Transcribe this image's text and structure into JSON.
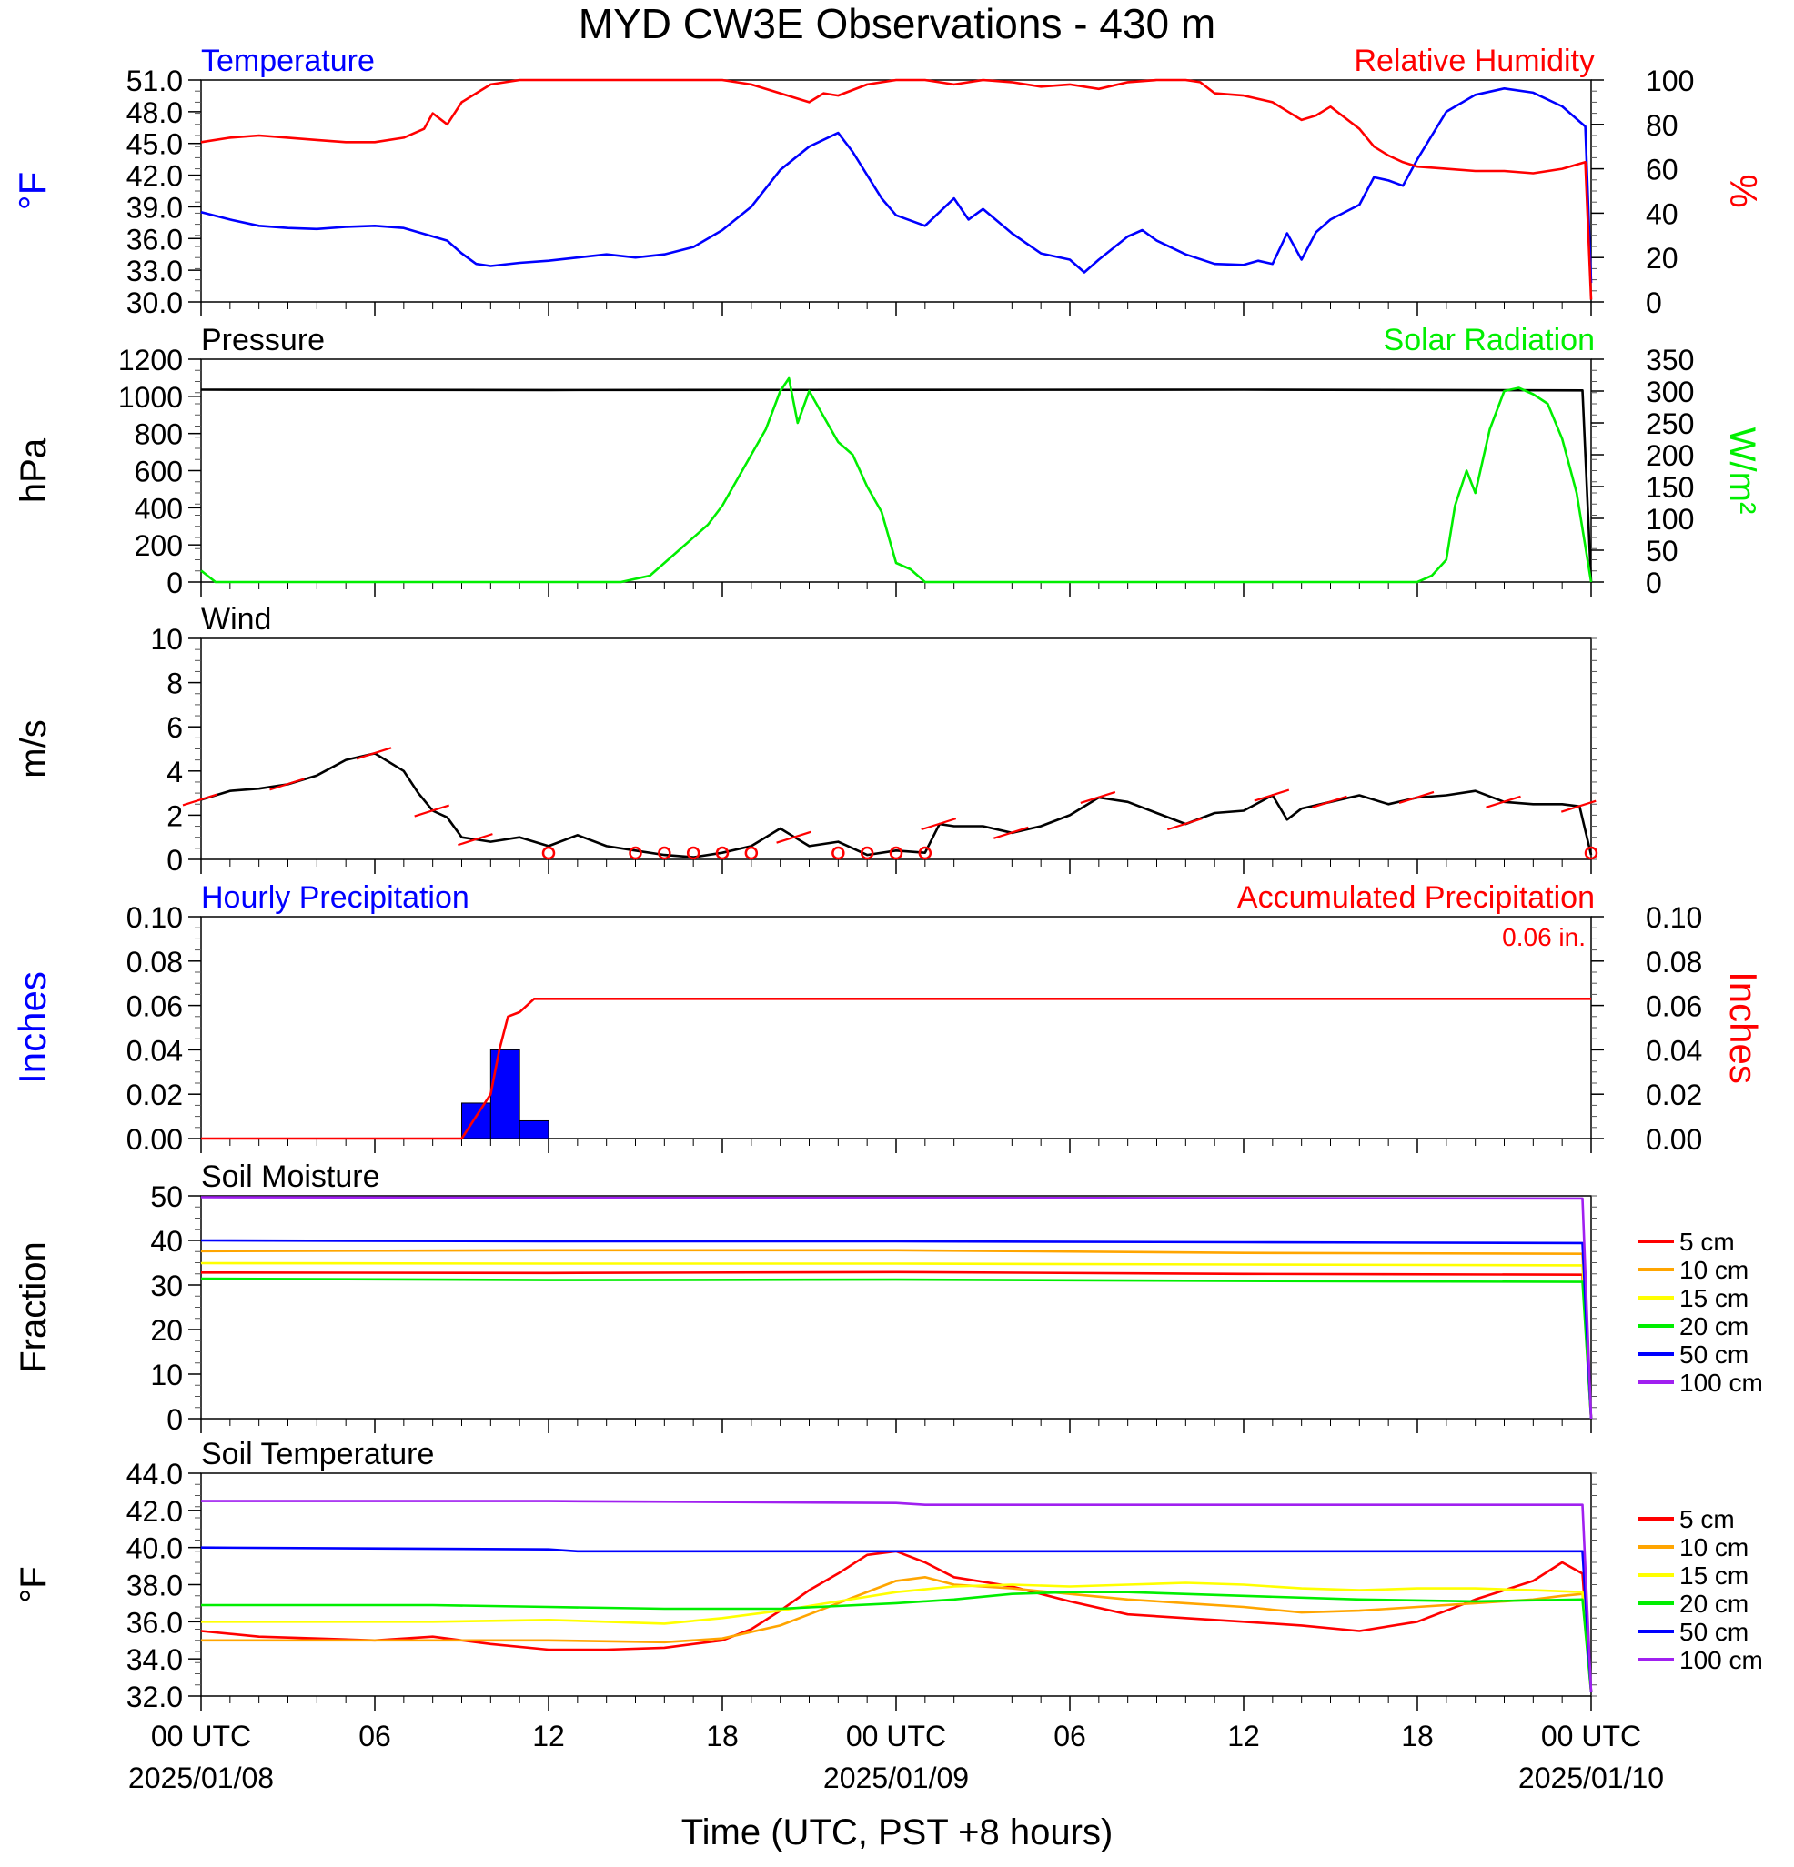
{
  "title": "MYD CW3E Observations - 430 m",
  "xaxis": {
    "title": "Time (UTC, PST +8 hours)",
    "ticks": [
      {
        "h": 0,
        "label": "00 UTC",
        "date": "2025/01/08"
      },
      {
        "h": 6,
        "label": "06",
        "date": ""
      },
      {
        "h": 12,
        "label": "12",
        "date": ""
      },
      {
        "h": 18,
        "label": "18",
        "date": ""
      },
      {
        "h": 24,
        "label": "00 UTC",
        "date": "2025/01/09"
      },
      {
        "h": 30,
        "label": "06",
        "date": ""
      },
      {
        "h": 36,
        "label": "12",
        "date": ""
      },
      {
        "h": 42,
        "label": "18",
        "date": ""
      },
      {
        "h": 48,
        "label": "00 UTC",
        "date": "2025/01/10"
      }
    ]
  },
  "chart_data": [
    {
      "type": "line",
      "id": "temp_rh",
      "left_title": "Temperature",
      "right_title": "Relative Humidity",
      "ylabel_left": "°F",
      "ylabel_right": "%",
      "left_ticks": [
        "51.0",
        "48.0",
        "45.0",
        "42.0",
        "39.0",
        "36.0",
        "33.0",
        "30.0"
      ],
      "right_ticks": [
        "100",
        "80",
        "60",
        "40",
        "20",
        "0"
      ],
      "ylim_left": [
        30,
        51
      ],
      "ylim_right": [
        0,
        100
      ],
      "series": [
        {
          "name": "Temperature",
          "color": "#0000ff",
          "axis": "left",
          "x": [
            0,
            1,
            2,
            3,
            4,
            5,
            6,
            7,
            8,
            8.5,
            9,
            9.5,
            10,
            11,
            12,
            13,
            14,
            15,
            16,
            17,
            18,
            19,
            20,
            21,
            22,
            22.5,
            23,
            23.5,
            24,
            25,
            26,
            26.5,
            27,
            28,
            29,
            30,
            30.5,
            31,
            32,
            32.5,
            33,
            34,
            35,
            36,
            36.5,
            37,
            37.5,
            38,
            38.5,
            39,
            40,
            40.5,
            41,
            41.5,
            42,
            43,
            44,
            45,
            46,
            47,
            47.8,
            48
          ],
          "y": [
            38.5,
            37.8,
            37.2,
            37.0,
            36.9,
            37.1,
            37.2,
            37.0,
            36.2,
            35.8,
            34.6,
            33.6,
            33.4,
            33.7,
            33.9,
            34.2,
            34.5,
            34.2,
            34.5,
            35.2,
            36.8,
            39.0,
            42.5,
            44.7,
            46.0,
            44.2,
            42.0,
            39.8,
            38.2,
            37.2,
            39.8,
            37.8,
            38.8,
            36.5,
            34.6,
            34.0,
            32.8,
            34.0,
            36.2,
            36.8,
            35.8,
            34.5,
            33.6,
            33.5,
            33.9,
            33.6,
            36.5,
            34.0,
            36.6,
            37.8,
            39.2,
            41.8,
            41.5,
            41.0,
            43.5,
            48.0,
            49.6,
            50.2,
            49.8,
            48.5,
            46.6,
            31.8
          ]
        },
        {
          "name": "Relative Humidity",
          "color": "#ff0000",
          "axis": "right",
          "x": [
            0,
            1,
            2,
            3,
            4,
            5,
            6,
            7,
            7.7,
            8,
            8.5,
            9,
            9.5,
            10,
            11,
            12,
            13,
            14,
            15,
            16,
            17,
            18,
            19,
            20,
            20.5,
            21,
            21.5,
            22,
            23,
            24,
            25,
            26,
            27,
            28,
            29,
            30,
            31,
            32,
            33,
            34,
            34.5,
            35,
            36,
            37,
            37.5,
            38,
            38.5,
            39,
            40,
            40.5,
            41,
            41.5,
            42,
            43,
            44,
            45,
            46,
            47,
            47.8,
            48
          ],
          "y": [
            72,
            74,
            75,
            74,
            73,
            72,
            72,
            74,
            78,
            85,
            80,
            90,
            94,
            98,
            100,
            100,
            100,
            100,
            100,
            100,
            100,
            100,
            98,
            94,
            92,
            90,
            94,
            93,
            98,
            100,
            100,
            98,
            100,
            99,
            97,
            98,
            96,
            99,
            100,
            100,
            99,
            94,
            93,
            90,
            86,
            82,
            84,
            88,
            78,
            70,
            66,
            63,
            61,
            60,
            59,
            59,
            58,
            60,
            63,
            1
          ]
        }
      ]
    },
    {
      "type": "line",
      "id": "pres_solar",
      "left_title": "Pressure",
      "right_title": "Solar Radiation",
      "ylabel_left": "hPa",
      "ylabel_right": "W/m²",
      "left_ticks": [
        "1200",
        "1000",
        "800",
        "600",
        "400",
        "200",
        "0"
      ],
      "right_ticks": [
        "350",
        "300",
        "250",
        "200",
        "150",
        "100",
        "50",
        "0"
      ],
      "ylim_left": [
        0,
        1200
      ],
      "ylim_right": [
        0,
        350
      ],
      "series": [
        {
          "name": "Pressure",
          "color": "#000000",
          "axis": "left",
          "x": [
            0,
            12,
            24,
            36,
            47.7,
            48
          ],
          "y": [
            1036,
            1034,
            1035,
            1036,
            1032,
            0
          ]
        },
        {
          "name": "Solar Radiation",
          "color": "#00ee00",
          "axis": "right",
          "x": [
            0,
            0.5,
            14.5,
            15.5,
            16.5,
            17.5,
            18,
            18.5,
            19,
            19.5,
            20,
            20.3,
            20.6,
            21,
            21.5,
            22,
            22.5,
            23,
            23.5,
            24,
            24.5,
            25,
            42,
            42.5,
            43,
            43.3,
            43.7,
            44,
            44.5,
            45,
            45.5,
            46,
            46.5,
            47,
            47.5,
            48
          ],
          "y": [
            18,
            0,
            0,
            10,
            50,
            90,
            120,
            160,
            200,
            240,
            300,
            320,
            250,
            300,
            260,
            220,
            200,
            150,
            110,
            30,
            20,
            0,
            0,
            10,
            35,
            120,
            175,
            140,
            240,
            300,
            305,
            295,
            280,
            225,
            140,
            0
          ]
        }
      ]
    },
    {
      "type": "line",
      "id": "wind",
      "left_title": "Wind",
      "ylabel_left": "m/s",
      "left_ticks": [
        "10",
        "8",
        "6",
        "4",
        "2",
        "0"
      ],
      "ylim_left": [
        0,
        10
      ],
      "series": [
        {
          "name": "Wind",
          "color": "#000000",
          "axis": "left",
          "x": [
            0,
            1,
            2,
            3,
            4,
            5,
            6,
            7,
            7.5,
            8,
            8.5,
            9,
            9.5,
            10,
            11,
            12,
            13,
            14,
            15,
            16,
            17,
            18,
            19,
            20,
            20.5,
            21,
            22,
            23,
            24,
            25,
            25.5,
            26,
            27,
            28,
            29,
            30,
            31,
            32,
            33,
            34,
            35,
            36,
            37,
            37.5,
            38,
            39,
            40,
            41,
            42,
            43,
            44,
            45,
            46,
            47,
            47.6,
            48
          ],
          "y": [
            2.7,
            3.1,
            3.2,
            3.4,
            3.8,
            4.5,
            4.8,
            4.0,
            3.0,
            2.2,
            1.9,
            1.0,
            0.9,
            0.8,
            1.0,
            0.6,
            1.1,
            0.6,
            0.4,
            0.2,
            0.1,
            0.3,
            0.6,
            1.4,
            1.0,
            0.6,
            0.8,
            0.2,
            0.4,
            0.3,
            1.6,
            1.5,
            1.5,
            1.2,
            1.5,
            2.0,
            2.8,
            2.6,
            2.1,
            1.6,
            2.1,
            2.2,
            2.9,
            1.8,
            2.3,
            2.6,
            2.9,
            2.5,
            2.8,
            2.9,
            3.1,
            2.6,
            2.5,
            2.5,
            2.4,
            0.2
          ]
        }
      ],
      "calm_hours": [
        12,
        15,
        16,
        17,
        18,
        19,
        22,
        23,
        24,
        25,
        48
      ]
    },
    {
      "type": "bar",
      "id": "precip",
      "left_title": "Hourly Precipitation",
      "right_title": "Accumulated Precipitation",
      "annotation": "0.06 in.",
      "ylabel_left": "Inches",
      "ylabel_right": "Inches",
      "left_ticks": [
        "0.10",
        "0.08",
        "0.06",
        "0.04",
        "0.02",
        "0.00"
      ],
      "right_ticks": [
        "0.10",
        "0.08",
        "0.06",
        "0.04",
        "0.02",
        "0.00"
      ],
      "ylim_left": [
        0,
        0.1
      ],
      "ylim_right": [
        0,
        0.1
      ],
      "bars": {
        "name": "Hourly Precipitation",
        "color": "#0000ff",
        "x_start": [
          9,
          10,
          11
        ],
        "values": [
          0.016,
          0.04,
          0.008
        ]
      },
      "series": [
        {
          "name": "Accumulated Precipitation",
          "color": "#ff0000",
          "axis": "right",
          "x": [
            0,
            9,
            9.5,
            10,
            10.3,
            10.6,
            11,
            11.5,
            12,
            48
          ],
          "y": [
            0,
            0,
            0.01,
            0.02,
            0.04,
            0.055,
            0.057,
            0.063,
            0.063,
            0.063
          ]
        }
      ]
    },
    {
      "type": "line",
      "id": "soil_moist",
      "left_title": "Soil Moisture",
      "ylabel_left": "Fraction",
      "left_ticks": [
        "50",
        "40",
        "30",
        "20",
        "10",
        "0"
      ],
      "ylim_left": [
        0,
        50
      ],
      "series": [
        {
          "name": "5 cm",
          "color": "#ff0000",
          "axis": "left",
          "x": [
            0,
            12,
            24,
            36,
            47.7,
            48
          ],
          "y": [
            32.8,
            32.7,
            32.9,
            32.5,
            32.3,
            0
          ]
        },
        {
          "name": "10 cm",
          "color": "#ffa500",
          "axis": "left",
          "x": [
            0,
            12,
            24,
            36,
            47.7,
            48
          ],
          "y": [
            37.6,
            37.8,
            37.8,
            37.2,
            37.0,
            0
          ]
        },
        {
          "name": "15 cm",
          "color": "#ffff00",
          "axis": "left",
          "x": [
            0,
            12,
            24,
            36,
            47.7,
            48
          ],
          "y": [
            34.9,
            34.8,
            34.8,
            34.6,
            34.4,
            0
          ]
        },
        {
          "name": "20 cm",
          "color": "#00ee00",
          "axis": "left",
          "x": [
            0,
            12,
            24,
            36,
            47.7,
            48
          ],
          "y": [
            31.4,
            31.1,
            31.2,
            30.9,
            30.7,
            0
          ]
        },
        {
          "name": "50 cm",
          "color": "#0000ff",
          "axis": "left",
          "x": [
            0,
            12,
            24,
            36,
            47.7,
            48
          ],
          "y": [
            40.0,
            39.8,
            39.8,
            39.6,
            39.4,
            0
          ]
        },
        {
          "name": "100 cm",
          "color": "#a020f0",
          "axis": "left",
          "x": [
            0,
            12,
            24,
            36,
            47.7,
            48
          ],
          "y": [
            49.7,
            49.6,
            49.6,
            49.5,
            49.4,
            0
          ]
        }
      ]
    },
    {
      "type": "line",
      "id": "soil_temp",
      "left_title": "Soil Temperature",
      "ylabel_left": "°F",
      "left_ticks": [
        "44.0",
        "42.0",
        "40.0",
        "38.0",
        "36.0",
        "34.0",
        "32.0"
      ],
      "ylim_left": [
        32,
        44
      ],
      "series": [
        {
          "name": "5 cm",
          "color": "#ff0000",
          "axis": "left",
          "x": [
            0,
            2,
            4,
            6,
            8,
            10,
            12,
            14,
            16,
            18,
            19,
            20,
            21,
            22,
            23,
            24,
            25,
            26,
            28,
            30,
            32,
            34,
            36,
            38,
            40,
            42,
            44,
            46,
            47,
            47.7,
            48
          ],
          "y": [
            35.5,
            35.2,
            35.1,
            35.0,
            35.2,
            34.8,
            34.5,
            34.5,
            34.6,
            35.0,
            35.6,
            36.6,
            37.7,
            38.6,
            39.6,
            39.8,
            39.2,
            38.4,
            37.9,
            37.1,
            36.4,
            36.2,
            36.0,
            35.8,
            35.5,
            36.0,
            37.2,
            38.2,
            39.2,
            38.6,
            32.2
          ]
        },
        {
          "name": "10 cm",
          "color": "#ffa500",
          "axis": "left",
          "x": [
            0,
            4,
            8,
            12,
            16,
            18,
            20,
            22,
            24,
            25,
            26,
            28,
            30,
            32,
            34,
            36,
            38,
            40,
            42,
            44,
            46,
            47,
            47.7,
            48
          ],
          "y": [
            35.0,
            35.0,
            35.0,
            35.0,
            34.9,
            35.1,
            35.8,
            37.0,
            38.2,
            38.4,
            38.0,
            37.8,
            37.5,
            37.2,
            37.0,
            36.8,
            36.5,
            36.6,
            36.8,
            37.0,
            37.2,
            37.4,
            37.5,
            32.2
          ]
        },
        {
          "name": "15 cm",
          "color": "#ffff00",
          "axis": "left",
          "x": [
            0,
            4,
            8,
            12,
            16,
            18,
            20,
            22,
            24,
            26,
            28,
            30,
            32,
            34,
            36,
            38,
            40,
            42,
            44,
            46,
            47.7,
            48
          ],
          "y": [
            36.0,
            36.0,
            36.0,
            36.1,
            35.9,
            36.2,
            36.6,
            37.1,
            37.6,
            37.9,
            38.0,
            37.9,
            38.0,
            38.1,
            38.0,
            37.8,
            37.7,
            37.8,
            37.8,
            37.7,
            37.6,
            32.2
          ]
        },
        {
          "name": "20 cm",
          "color": "#00ee00",
          "axis": "left",
          "x": [
            0,
            4,
            8,
            12,
            16,
            20,
            24,
            26,
            28,
            30,
            32,
            36,
            40,
            44,
            47.7,
            48
          ],
          "y": [
            36.9,
            36.9,
            36.9,
            36.8,
            36.7,
            36.7,
            37.0,
            37.2,
            37.5,
            37.6,
            37.6,
            37.4,
            37.2,
            37.1,
            37.2,
            32.2
          ]
        },
        {
          "name": "50 cm",
          "color": "#0000ff",
          "axis": "left",
          "x": [
            0,
            12,
            13,
            24,
            36,
            47.7,
            48
          ],
          "y": [
            40.0,
            39.9,
            39.8,
            39.8,
            39.8,
            39.8,
            32.2
          ]
        },
        {
          "name": "100 cm",
          "color": "#a020f0",
          "axis": "left",
          "x": [
            0,
            12,
            24,
            25,
            36,
            47.7,
            48
          ],
          "y": [
            42.5,
            42.5,
            42.4,
            42.3,
            42.3,
            42.3,
            32.2
          ]
        }
      ]
    }
  ],
  "legend_labels": [
    "5 cm",
    "10 cm",
    "15 cm",
    "20 cm",
    "50 cm",
    "100 cm"
  ],
  "legend_colors": [
    "#ff0000",
    "#ffa500",
    "#ffff00",
    "#00ee00",
    "#0000ff",
    "#a020f0"
  ]
}
